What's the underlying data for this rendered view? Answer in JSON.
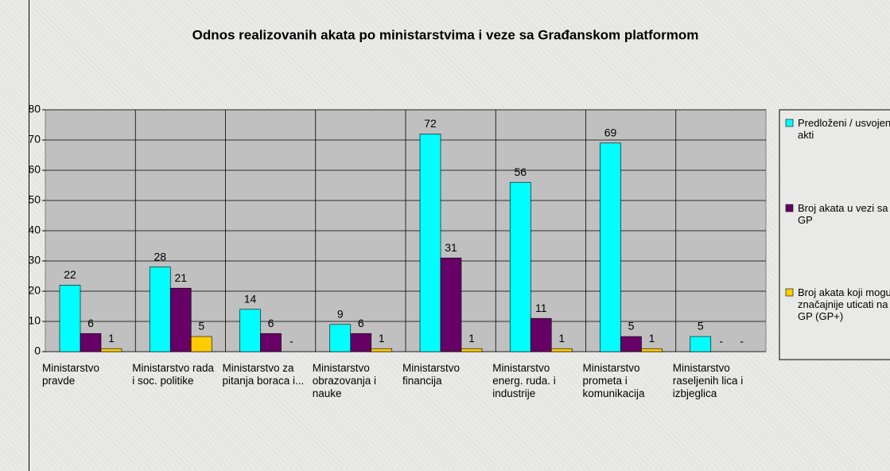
{
  "chart_data": {
    "type": "bar",
    "title": "Odnos realizovanih akata po ministarstvima i veze sa Građanskom platformom",
    "categories": [
      "Ministarstvo pravde",
      "Ministarstvo rada i soc. politike",
      "Ministarstvo za pitanja boraca i...",
      "Ministarstvo obrazovanja i nauke",
      "Ministarstvo financija",
      "Ministarstvo energ. ruda. i industrije",
      "Ministarstvo prometa i komunikacija",
      "Ministarstvo raseljenih lica i izbjeglica"
    ],
    "series": [
      {
        "name": "Predloženi / usvojeni akti",
        "color": "#00ffff",
        "values": [
          22,
          28,
          14,
          9,
          72,
          56,
          69,
          5
        ]
      },
      {
        "name": "Broj akata u vezi sa GP",
        "color": "#660066",
        "values": [
          6,
          21,
          6,
          6,
          31,
          11,
          5,
          0
        ],
        "value_labels": [
          "6",
          "21",
          "6",
          "6",
          "31",
          "11",
          "5",
          "-"
        ]
      },
      {
        "name": "Broj akata koji mogu značajnije uticati na GP (GP+)",
        "color": "#ffcc00",
        "values": [
          1,
          5,
          0,
          1,
          1,
          1,
          1,
          0
        ],
        "value_labels": [
          "1",
          "5",
          "-",
          "1",
          "1",
          "1",
          "1",
          "-"
        ]
      }
    ],
    "ylim": [
      0,
      80
    ],
    "yticks": [
      0,
      10,
      20,
      30,
      40,
      50,
      60,
      70,
      80
    ],
    "grid": true,
    "legend": "right"
  }
}
